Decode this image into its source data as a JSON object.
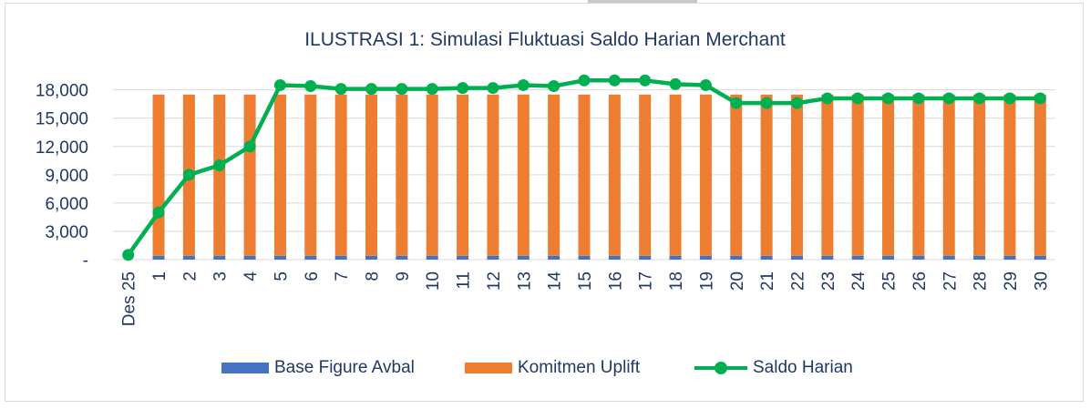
{
  "chart_data": {
    "type": "bar",
    "title": "ILUSTRASI 1: Simulasi Fluktuasi Saldo Harian Merchant",
    "categories": [
      "Des 25",
      "1",
      "2",
      "3",
      "4",
      "5",
      "6",
      "7",
      "8",
      "9",
      "10",
      "11",
      "12",
      "13",
      "14",
      "15",
      "16",
      "17",
      "18",
      "19",
      "20",
      "21",
      "22",
      "23",
      "24",
      "25",
      "26",
      "27",
      "28",
      "29",
      "30"
    ],
    "ylim": [
      0,
      19800
    ],
    "yticks": [
      {
        "value": 0,
        "label": "-"
      },
      {
        "value": 3000,
        "label": "3,000"
      },
      {
        "value": 6000,
        "label": "6,000"
      },
      {
        "value": 9000,
        "label": "9,000"
      },
      {
        "value": 12000,
        "label": "12,000"
      },
      {
        "value": 15000,
        "label": "15,000"
      },
      {
        "value": 18000,
        "label": "18,000"
      }
    ],
    "grid": true,
    "legend_position": "bottom",
    "series": [
      {
        "name": "Base Figure Avbal",
        "type": "bar",
        "stacked": true,
        "color": "#4472c4",
        "values": [
          0,
          400,
          400,
          400,
          400,
          400,
          400,
          400,
          400,
          400,
          400,
          400,
          400,
          400,
          400,
          400,
          400,
          400,
          400,
          400,
          400,
          400,
          400,
          400,
          400,
          400,
          400,
          400,
          400,
          400,
          400
        ]
      },
      {
        "name": "Komitmen Uplift",
        "type": "bar",
        "stacked": true,
        "color": "#ed7d31",
        "values": [
          0,
          17100,
          17100,
          17100,
          17100,
          17100,
          17100,
          17100,
          17100,
          17100,
          17100,
          17100,
          17100,
          17100,
          17100,
          17100,
          17100,
          17100,
          17100,
          17100,
          17100,
          17100,
          17100,
          17100,
          17100,
          17100,
          17100,
          17100,
          17100,
          17100,
          17100
        ]
      },
      {
        "name": "Saldo Harian",
        "type": "line",
        "color": "#00b050",
        "values": [
          500,
          5000,
          9000,
          10000,
          12000,
          18500,
          18400,
          18100,
          18100,
          18100,
          18100,
          18200,
          18200,
          18500,
          18400,
          19000,
          19000,
          19000,
          18600,
          18500,
          16600,
          16600,
          16600,
          17100,
          17100,
          17100,
          17100,
          17100,
          17100,
          17100,
          17100
        ]
      }
    ]
  }
}
